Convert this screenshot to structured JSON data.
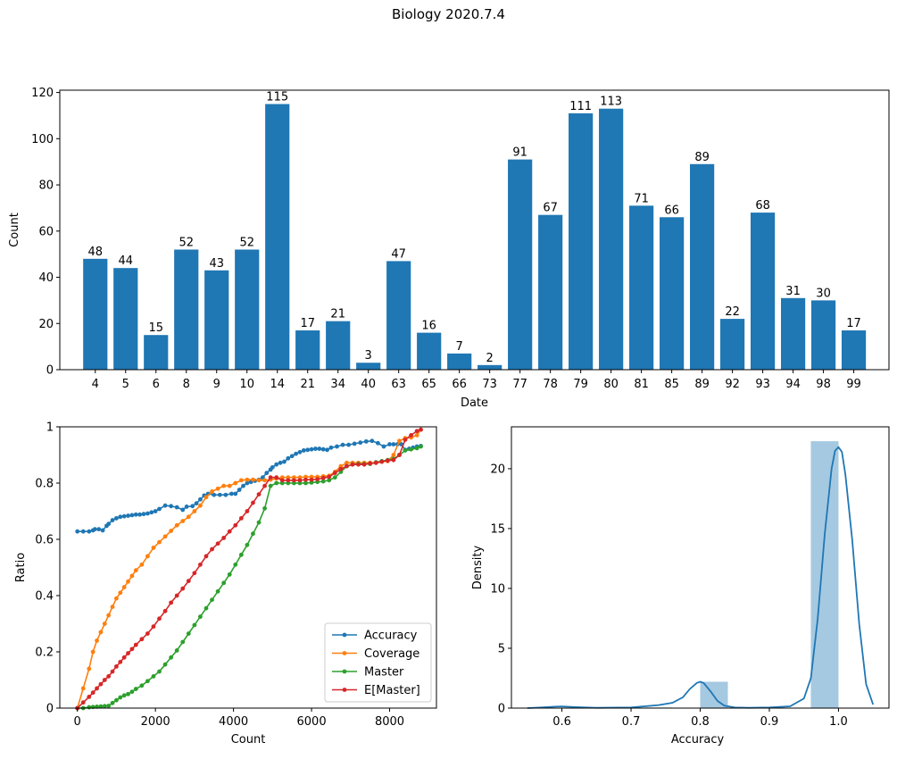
{
  "figure": {
    "suptitle": "Biology 2020.7.4"
  },
  "chart_data": [
    {
      "type": "bar",
      "title": "",
      "xlabel": "Date",
      "ylabel": "Count",
      "categories": [
        "4",
        "5",
        "6",
        "8",
        "9",
        "10",
        "14",
        "21",
        "34",
        "40",
        "63",
        "65",
        "66",
        "73",
        "77",
        "78",
        "79",
        "80",
        "81",
        "85",
        "89",
        "92",
        "93",
        "94",
        "98",
        "99"
      ],
      "values": [
        48,
        44,
        15,
        52,
        43,
        52,
        115,
        17,
        21,
        3,
        47,
        16,
        7,
        2,
        91,
        67,
        111,
        113,
        71,
        66,
        89,
        22,
        68,
        31,
        30,
        17
      ],
      "ylim": [
        0,
        121
      ],
      "yticks": [
        0,
        20,
        40,
        60,
        80,
        100,
        120
      ],
      "color": "#1f77b4",
      "data_labels": true,
      "grid": false
    },
    {
      "type": "line",
      "title": "",
      "xlabel": "Count",
      "ylabel": "Ratio",
      "xlim": [
        -450,
        9200
      ],
      "ylim": [
        0,
        1.0
      ],
      "xticks": [
        0,
        2000,
        4000,
        6000,
        8000
      ],
      "yticks": [
        0,
        0.2,
        0.4,
        0.6,
        0.8,
        1.0
      ],
      "legend_position": "lower-right",
      "grid": false,
      "series": [
        {
          "name": "Accuracy",
          "color": "#1f77b4",
          "x": [
            0,
            150,
            300,
            400,
            450,
            550,
            650,
            750,
            800,
            900,
            1000,
            1100,
            1200,
            1300,
            1400,
            1500,
            1600,
            1700,
            1800,
            1900,
            2000,
            2100,
            2250,
            2400,
            2550,
            2700,
            2800,
            2950,
            3050,
            3150,
            3250,
            3350,
            3500,
            3650,
            3800,
            3950,
            4050,
            4150,
            4250,
            4350,
            4450,
            4550,
            4650,
            4750,
            4850,
            4950,
            5000,
            5100,
            5200,
            5300,
            5400,
            5500,
            5600,
            5700,
            5800,
            5900,
            6000,
            6100,
            6200,
            6300,
            6400,
            6500,
            6650,
            6800,
            6950,
            7100,
            7250,
            7400,
            7550,
            7700,
            7850,
            8000,
            8100,
            8200,
            8300,
            8400,
            8500,
            8600,
            8700,
            8800
          ],
          "y": [
            0.628,
            0.628,
            0.628,
            0.632,
            0.636,
            0.636,
            0.632,
            0.648,
            0.655,
            0.668,
            0.675,
            0.68,
            0.682,
            0.684,
            0.686,
            0.688,
            0.688,
            0.69,
            0.692,
            0.696,
            0.7,
            0.708,
            0.72,
            0.718,
            0.714,
            0.705,
            0.716,
            0.718,
            0.728,
            0.742,
            0.756,
            0.762,
            0.758,
            0.758,
            0.758,
            0.762,
            0.762,
            0.776,
            0.79,
            0.8,
            0.804,
            0.808,
            0.812,
            0.82,
            0.836,
            0.848,
            0.856,
            0.866,
            0.872,
            0.876,
            0.888,
            0.896,
            0.904,
            0.91,
            0.916,
            0.918,
            0.92,
            0.922,
            0.922,
            0.92,
            0.918,
            0.926,
            0.93,
            0.936,
            0.936,
            0.94,
            0.944,
            0.948,
            0.95,
            0.942,
            0.93,
            0.938,
            0.938,
            0.938,
            0.938,
            0.918,
            0.922,
            0.926,
            0.93,
            0.932
          ]
        },
        {
          "name": "Coverage",
          "color": "#ff7f0e",
          "x": [
            0,
            150,
            300,
            400,
            500,
            600,
            700,
            800,
            900,
            1000,
            1100,
            1200,
            1300,
            1400,
            1500,
            1650,
            1800,
            1950,
            2100,
            2250,
            2400,
            2550,
            2700,
            2850,
            3000,
            3150,
            3300,
            3450,
            3600,
            3750,
            3900,
            4050,
            4200,
            4350,
            4500,
            4650,
            4800,
            4950,
            5100,
            5250,
            5400,
            5550,
            5700,
            5850,
            6000,
            6150,
            6300,
            6450,
            6600,
            6750,
            6900,
            7050,
            7200,
            7350,
            7500,
            7650,
            7800,
            7950,
            8100,
            8250,
            8400,
            8550,
            8700,
            8800
          ],
          "y": [
            0,
            0.07,
            0.14,
            0.2,
            0.24,
            0.27,
            0.3,
            0.33,
            0.36,
            0.39,
            0.41,
            0.43,
            0.45,
            0.47,
            0.49,
            0.51,
            0.54,
            0.57,
            0.59,
            0.61,
            0.63,
            0.65,
            0.665,
            0.68,
            0.7,
            0.72,
            0.75,
            0.77,
            0.78,
            0.79,
            0.79,
            0.8,
            0.81,
            0.812,
            0.812,
            0.81,
            0.81,
            0.812,
            0.816,
            0.82,
            0.82,
            0.82,
            0.82,
            0.822,
            0.822,
            0.822,
            0.824,
            0.826,
            0.84,
            0.86,
            0.872,
            0.872,
            0.872,
            0.872,
            0.872,
            0.872,
            0.876,
            0.878,
            0.9,
            0.95,
            0.96,
            0.962,
            0.97,
            0.99
          ]
        },
        {
          "name": "Master",
          "color": "#2ca02c",
          "x": [
            0,
            150,
            300,
            400,
            500,
            600,
            700,
            800,
            900,
            1000,
            1100,
            1200,
            1300,
            1400,
            1500,
            1650,
            1800,
            1950,
            2100,
            2250,
            2400,
            2550,
            2700,
            2850,
            3000,
            3150,
            3300,
            3450,
            3600,
            3750,
            3900,
            4050,
            4200,
            4350,
            4500,
            4650,
            4800,
            4950,
            5100,
            5250,
            5400,
            5550,
            5700,
            5850,
            6000,
            6150,
            6300,
            6450,
            6600,
            6750,
            6900,
            7050,
            7200,
            7350,
            7500,
            7650,
            7800,
            7950,
            8100,
            8250,
            8400,
            8550,
            8700,
            8800
          ],
          "y": [
            0,
            0,
            0.003,
            0.004,
            0.005,
            0.006,
            0.007,
            0.008,
            0.018,
            0.028,
            0.038,
            0.045,
            0.05,
            0.058,
            0.068,
            0.08,
            0.096,
            0.113,
            0.13,
            0.155,
            0.18,
            0.205,
            0.235,
            0.265,
            0.295,
            0.325,
            0.355,
            0.385,
            0.415,
            0.445,
            0.475,
            0.51,
            0.545,
            0.58,
            0.62,
            0.66,
            0.71,
            0.79,
            0.8,
            0.8,
            0.8,
            0.8,
            0.8,
            0.8,
            0.802,
            0.804,
            0.806,
            0.81,
            0.82,
            0.84,
            0.86,
            0.866,
            0.868,
            0.868,
            0.868,
            0.874,
            0.878,
            0.882,
            0.886,
            0.9,
            0.916,
            0.92,
            0.924,
            0.93
          ]
        },
        {
          "name": "E[Master]",
          "color": "#d62728",
          "x": [
            0,
            150,
            300,
            400,
            500,
            600,
            700,
            800,
            900,
            1000,
            1100,
            1200,
            1300,
            1400,
            1500,
            1650,
            1800,
            1950,
            2100,
            2250,
            2400,
            2550,
            2700,
            2850,
            3000,
            3150,
            3300,
            3450,
            3600,
            3750,
            3900,
            4050,
            4200,
            4350,
            4500,
            4650,
            4800,
            4950,
            5100,
            5250,
            5400,
            5550,
            5700,
            5850,
            6000,
            6150,
            6300,
            6450,
            6600,
            6750,
            6900,
            7050,
            7200,
            7350,
            7500,
            7650,
            7800,
            7950,
            8100,
            8250,
            8400,
            8550,
            8700,
            8800
          ],
          "y": [
            0,
            0.02,
            0.04,
            0.055,
            0.07,
            0.085,
            0.1,
            0.113,
            0.13,
            0.148,
            0.164,
            0.18,
            0.195,
            0.21,
            0.225,
            0.245,
            0.265,
            0.29,
            0.318,
            0.345,
            0.375,
            0.4,
            0.425,
            0.452,
            0.48,
            0.51,
            0.54,
            0.565,
            0.585,
            0.605,
            0.628,
            0.65,
            0.675,
            0.7,
            0.73,
            0.76,
            0.79,
            0.82,
            0.82,
            0.81,
            0.81,
            0.81,
            0.81,
            0.812,
            0.812,
            0.814,
            0.818,
            0.822,
            0.836,
            0.85,
            0.86,
            0.866,
            0.866,
            0.866,
            0.87,
            0.872,
            0.876,
            0.88,
            0.882,
            0.9,
            0.954,
            0.97,
            0.985,
            0.99
          ]
        }
      ]
    },
    {
      "type": "histogram",
      "title": "",
      "xlabel": "Accuracy",
      "ylabel": "Density",
      "xlim": [
        0.527,
        1.073
      ],
      "ylim": [
        0,
        23.5
      ],
      "xticks": [
        0.6,
        0.7,
        0.8,
        0.9,
        1.0
      ],
      "yticks": [
        0,
        5,
        10,
        15,
        20
      ],
      "grid": false,
      "histogram": {
        "color": "#1f77b4",
        "opacity": 0.4,
        "bins": [
          {
            "start": 0.72,
            "end": 0.76,
            "density": 0.05
          },
          {
            "start": 0.8,
            "end": 0.84,
            "density": 2.2
          },
          {
            "start": 0.96,
            "end": 1.0,
            "density": 22.3
          }
        ]
      },
      "kde": {
        "color": "#1f77b4",
        "x": [
          0.55,
          0.57,
          0.59,
          0.6,
          0.62,
          0.65,
          0.7,
          0.74,
          0.76,
          0.775,
          0.785,
          0.795,
          0.8,
          0.805,
          0.815,
          0.825,
          0.835,
          0.85,
          0.87,
          0.9,
          0.93,
          0.95,
          0.96,
          0.97,
          0.98,
          0.99,
          0.995,
          1.0,
          1.005,
          1.01,
          1.02,
          1.03,
          1.04,
          1.05
        ],
        "y": [
          0.0,
          0.05,
          0.12,
          0.14,
          0.08,
          0.02,
          0.05,
          0.25,
          0.45,
          0.9,
          1.6,
          2.1,
          2.2,
          2.1,
          1.4,
          0.6,
          0.2,
          0.05,
          0.02,
          0.05,
          0.15,
          0.8,
          2.5,
          7.5,
          14.5,
          20.0,
          21.5,
          21.8,
          21.4,
          19.5,
          14.0,
          7.0,
          2.0,
          0.3
        ]
      }
    }
  ]
}
